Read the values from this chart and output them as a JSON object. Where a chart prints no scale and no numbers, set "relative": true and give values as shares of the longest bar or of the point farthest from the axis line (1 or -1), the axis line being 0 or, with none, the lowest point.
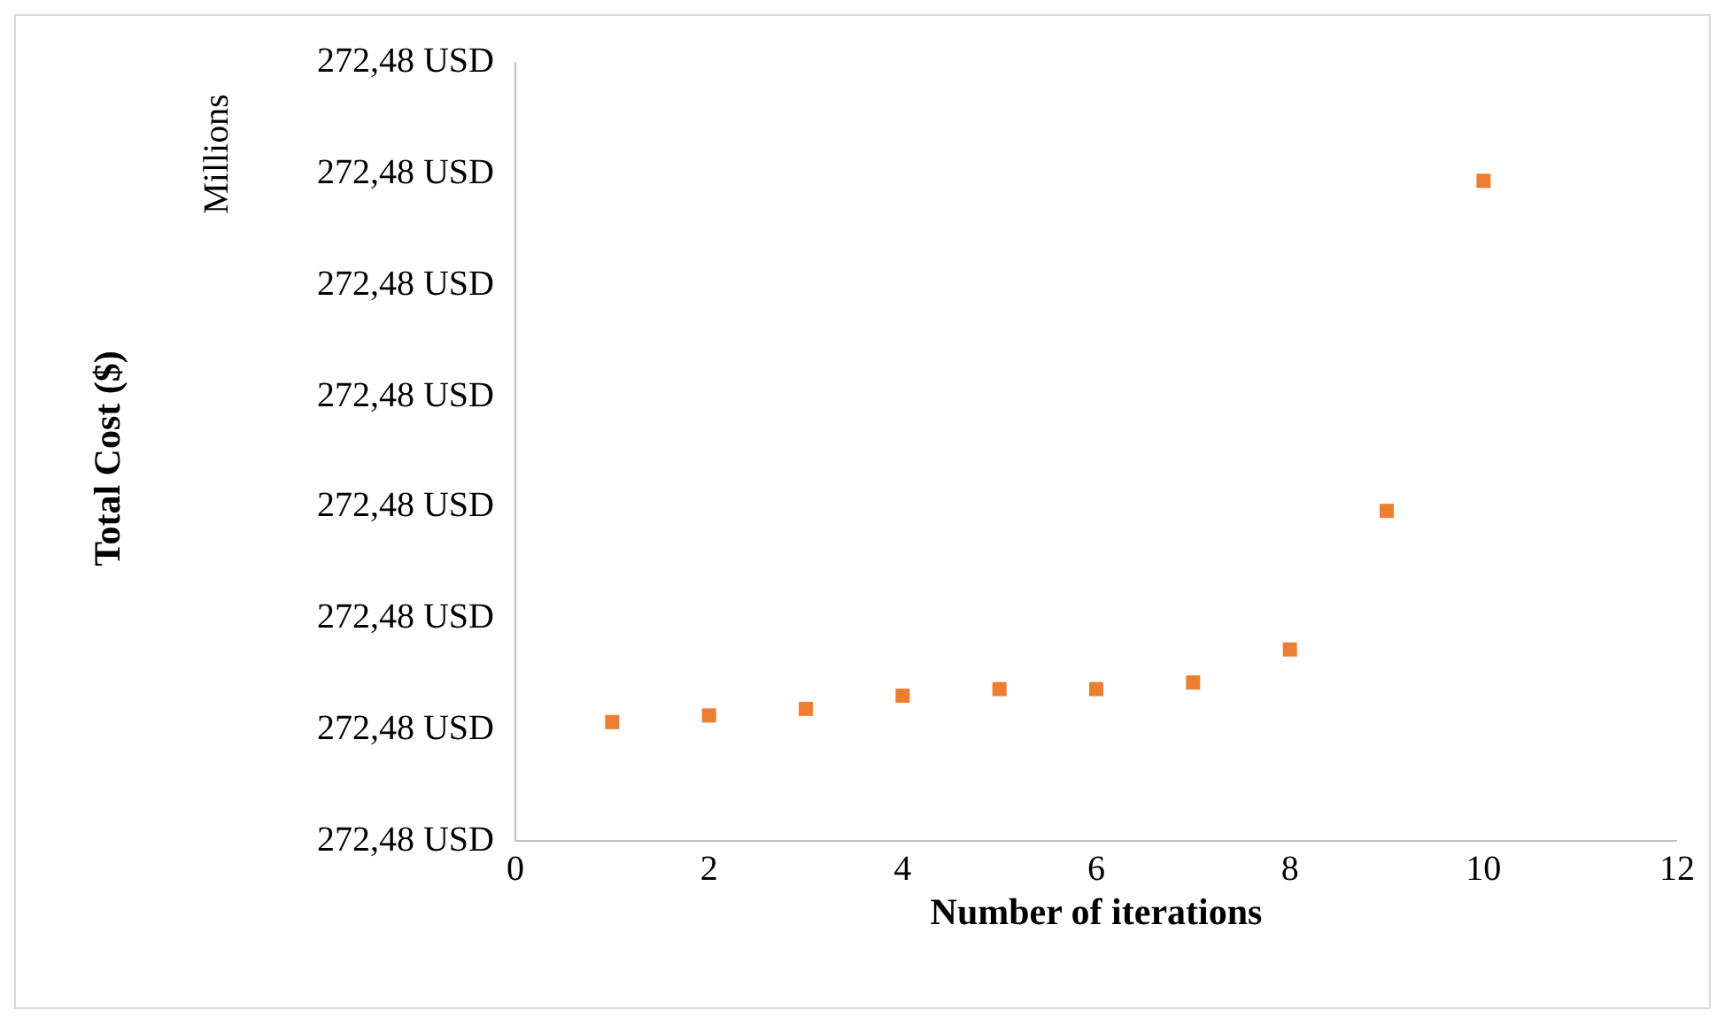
{
  "chart_data": {
    "type": "scatter",
    "xlabel": "Number of iterations",
    "annotations": [
      "Millions",
      "Total Cost ($)",
      "272,48 USD",
      "272,48 USD",
      "272,48 USD",
      "272,48 USD",
      "272,48 USD",
      "272,48 USD",
      "272,48 USD",
      "272,48 USD"
    ],
    "x": [
      1,
      2,
      3,
      4,
      5,
      6,
      7,
      8,
      9,
      10
    ],
    "values": [
      0.18,
      0.19,
      0.2,
      0.22,
      0.23,
      0.23,
      0.24,
      0.29,
      0.5,
      1
    ],
    "relative": true,
    "color": "#ed7d31",
    "marker": "square",
    "grid": false,
    "legend": false,
    "xlim": [
      0,
      12
    ],
    "xticks": [
      0,
      2,
      4,
      6,
      8,
      10,
      12
    ]
  }
}
